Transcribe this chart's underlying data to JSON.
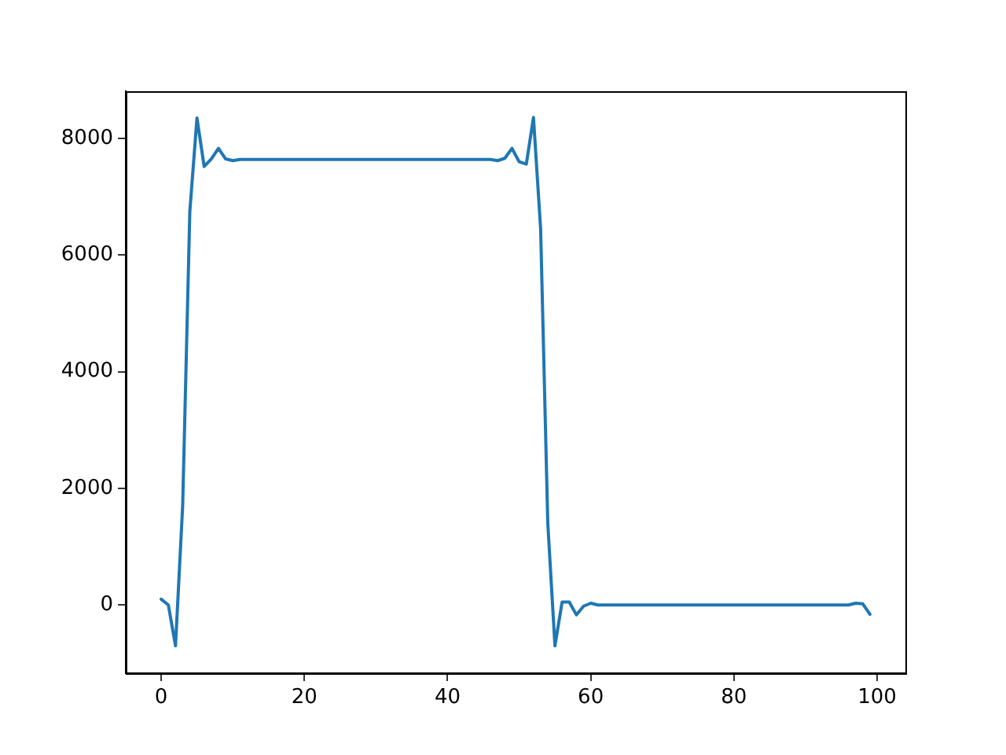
{
  "chart_data": {
    "type": "line",
    "color": "#1f77b4",
    "x": [
      0,
      1,
      2,
      3,
      4,
      5,
      6,
      7,
      8,
      9,
      10,
      11,
      12,
      13,
      14,
      15,
      16,
      17,
      18,
      19,
      20,
      21,
      22,
      23,
      24,
      25,
      26,
      27,
      28,
      29,
      30,
      31,
      32,
      33,
      34,
      35,
      36,
      37,
      38,
      39,
      40,
      41,
      42,
      43,
      44,
      45,
      46,
      47,
      48,
      49,
      50,
      51,
      52,
      53,
      54,
      55,
      56,
      57,
      58,
      59,
      60,
      61,
      62,
      63,
      64,
      65,
      66,
      67,
      68,
      69,
      70,
      71,
      72,
      73,
      74,
      75,
      76,
      77,
      78,
      79,
      80,
      81,
      82,
      83,
      84,
      85,
      86,
      87,
      88,
      89,
      90,
      91,
      92,
      93,
      94,
      95,
      96,
      97,
      98,
      99
    ],
    "values": [
      100,
      0,
      -700,
      1700,
      6750,
      8350,
      7520,
      7650,
      7830,
      7650,
      7620,
      7640,
      7640,
      7640,
      7640,
      7640,
      7640,
      7640,
      7640,
      7640,
      7640,
      7640,
      7640,
      7640,
      7640,
      7640,
      7640,
      7640,
      7640,
      7640,
      7640,
      7640,
      7640,
      7640,
      7640,
      7640,
      7640,
      7640,
      7640,
      7640,
      7640,
      7640,
      7640,
      7640,
      7640,
      7640,
      7640,
      7620,
      7660,
      7830,
      7600,
      7560,
      8360,
      6450,
      1400,
      -700,
      50,
      50,
      -170,
      -20,
      30,
      0,
      0,
      0,
      0,
      0,
      0,
      0,
      0,
      0,
      0,
      0,
      0,
      0,
      0,
      0,
      0,
      0,
      0,
      0,
      0,
      0,
      0,
      0,
      0,
      0,
      0,
      0,
      0,
      0,
      0,
      0,
      0,
      0,
      0,
      0,
      0,
      30,
      20,
      -160
    ],
    "xlim": [
      -4.95,
      103.95
    ],
    "ylim": [
      -1170,
      8810
    ],
    "xticks": [
      0,
      20,
      40,
      60,
      80,
      100
    ],
    "yticks": [
      0,
      2000,
      4000,
      6000,
      8000
    ]
  }
}
